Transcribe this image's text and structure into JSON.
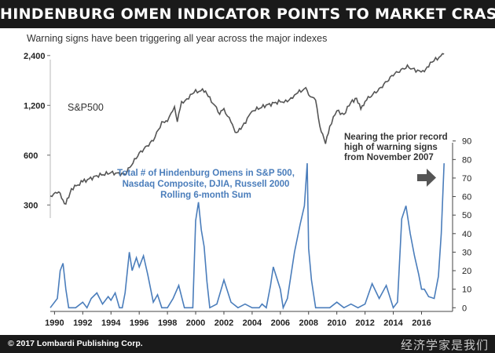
{
  "header": {
    "title": "HINDENBURG OMEN INDICATOR POINTS TO MARKET CRASH IN",
    "subtitle": "Warning signs have been triggering all year across the major indexes"
  },
  "footer": {
    "credit": "© 2017 Lombardi Publishing Corp.",
    "watermark": "经济学家是我们"
  },
  "colors": {
    "spx_line": "#555555",
    "hindenburg_line": "#4a7dbb",
    "arrow": "#555555",
    "banner_bg": "#1a1a1a"
  },
  "chart_data": {
    "type": "line",
    "x_ticks": [
      "1990",
      "1992",
      "1994",
      "1996",
      "1998",
      "2000",
      "2002",
      "2004",
      "2006",
      "2008",
      "2010",
      "2012",
      "2014",
      "2016"
    ],
    "xlim": [
      1989.7,
      2018.2
    ],
    "left_axis": {
      "scale": "log",
      "ticks": [
        "300",
        "600",
        "1,200",
        "2,400"
      ],
      "ylim": [
        250,
        2700
      ]
    },
    "right_axis": {
      "ticks": [
        "0",
        "10",
        "20",
        "30",
        "40",
        "50",
        "60",
        "70",
        "80",
        "90"
      ],
      "ylim": [
        -2,
        92
      ]
    },
    "series_label": "S&P500",
    "hindenburg_label": [
      "Total # of Hindenburg Omens in S&P 500,",
      "Nasdaq Composite, DJIA, Russell 2000",
      "Rolling 6-month Sum"
    ],
    "annotation": [
      "Nearing the prior record",
      "high of warning signs",
      "from November 2007"
    ],
    "series": [
      {
        "name": "S&P500",
        "x": [
          1989.7,
          1990.3,
          1990.6,
          1990.8,
          1991.2,
          1992.0,
          1993.0,
          1994.0,
          1995.0,
          1996.0,
          1997.0,
          1997.6,
          1998.0,
          1998.5,
          1998.7,
          1999.0,
          1999.5,
          2000.0,
          2000.6,
          2001.0,
          2001.7,
          2002.0,
          2002.5,
          2002.8,
          2003.2,
          2004.0,
          2005.0,
          2006.0,
          2006.5,
          2007.0,
          2007.8,
          2008.0,
          2008.5,
          2008.8,
          2009.2,
          2009.5,
          2010.0,
          2010.5,
          2011.0,
          2011.4,
          2011.7,
          2012.0,
          2013.0,
          2014.0,
          2015.0,
          2015.6,
          2016.1,
          2016.5,
          2017.0,
          2017.6
        ],
        "values": [
          340,
          360,
          320,
          305,
          375,
          415,
          450,
          470,
          460,
          615,
          740,
          940,
          980,
          1150,
          980,
          1230,
          1350,
          1450,
          1480,
          1320,
          1080,
          1130,
          960,
          820,
          860,
          1110,
          1200,
          1270,
          1250,
          1400,
          1520,
          1400,
          1280,
          900,
          700,
          900,
          1110,
          1060,
          1250,
          1330,
          1130,
          1280,
          1500,
          1840,
          2060,
          1950,
          1900,
          2100,
          2270,
          2450
        ]
      },
      {
        "name": "Total # of Hindenburg Omens in S&P 500, Nasdaq Composite, DJIA, Russell 2000",
        "x": [
          1989.7,
          1990.2,
          1990.4,
          1990.6,
          1990.8,
          1991.0,
          1991.5,
          1992.0,
          1992.3,
          1992.6,
          1993.0,
          1993.4,
          1993.8,
          1994.0,
          1994.3,
          1994.6,
          1994.8,
          1995.0,
          1995.3,
          1995.5,
          1995.8,
          1996.0,
          1996.3,
          1996.6,
          1997.0,
          1997.3,
          1997.6,
          1998.0,
          1998.4,
          1998.8,
          1999.2,
          1999.5,
          1999.7,
          1999.8,
          2000.0,
          2000.2,
          2000.4,
          2000.6,
          2000.8,
          2001.0,
          2001.5,
          2002.0,
          2002.5,
          2003.0,
          2003.5,
          2004.0,
          2004.5,
          2004.7,
          2005.0,
          2005.3,
          2005.5,
          2006.0,
          2006.2,
          2006.5,
          2007.0,
          2007.4,
          2007.7,
          2007.9,
          2008.0,
          2008.2,
          2008.5,
          2008.8,
          2009.0,
          2009.5,
          2010.0,
          2010.5,
          2011.0,
          2011.5,
          2012.0,
          2012.5,
          2013.0,
          2013.5,
          2014.0,
          2014.3,
          2014.6,
          2014.9,
          2015.2,
          2015.5,
          2015.8,
          2016.0,
          2016.2,
          2016.5,
          2016.9,
          2017.2,
          2017.4,
          2017.6
        ],
        "values": [
          0,
          5,
          20,
          24,
          10,
          0,
          0,
          3,
          0,
          5,
          8,
          2,
          6,
          4,
          8,
          0,
          0,
          8,
          30,
          20,
          27,
          22,
          28,
          18,
          3,
          7,
          0,
          0,
          5,
          12,
          0,
          0,
          0,
          0,
          47,
          57,
          42,
          33,
          14,
          0,
          2,
          15,
          3,
          0,
          2,
          0,
          0,
          2,
          0,
          12,
          22,
          10,
          0,
          5,
          30,
          45,
          55,
          78,
          32,
          15,
          0,
          0,
          0,
          0,
          3,
          0,
          2,
          0,
          2,
          13,
          5,
          12,
          0,
          3,
          48,
          55,
          40,
          28,
          18,
          10,
          10,
          6,
          5,
          17,
          40,
          78
        ]
      }
    ]
  }
}
